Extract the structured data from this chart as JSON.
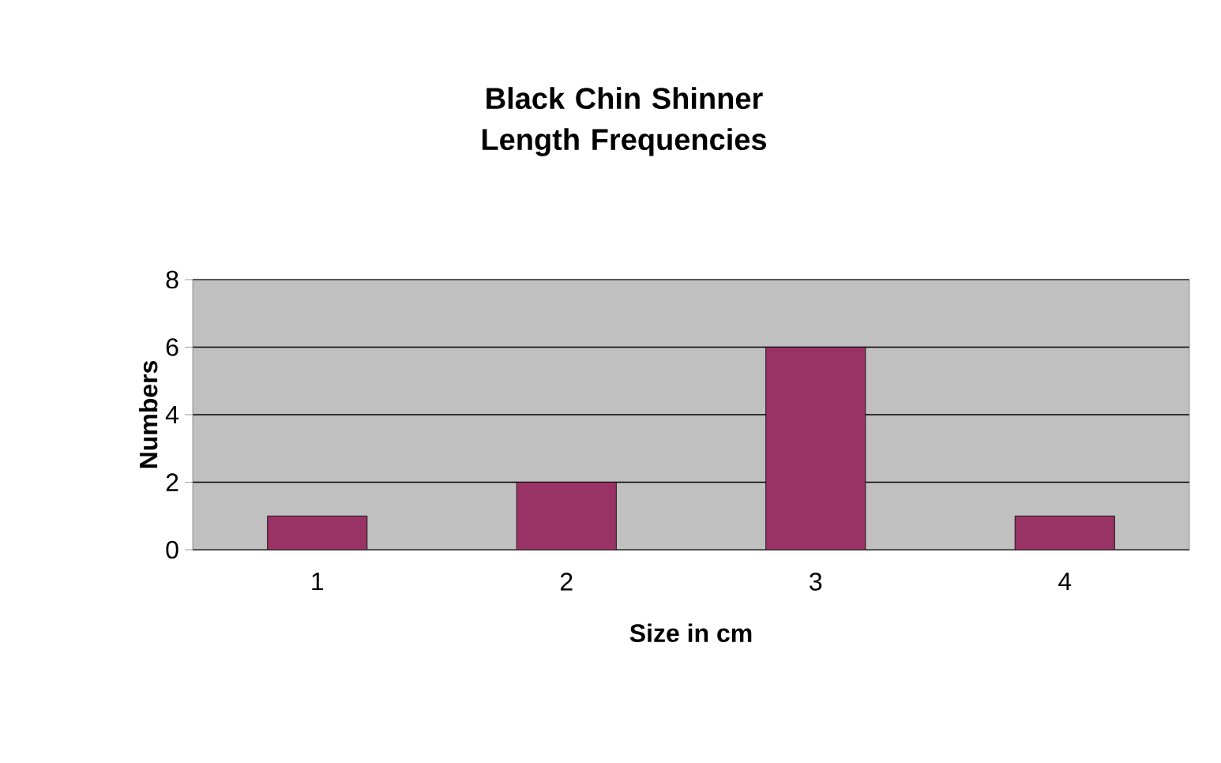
{
  "chart_data": {
    "type": "bar",
    "title": "Black Chin Shinner Length Frequencies",
    "xlabel": "Size in cm",
    "ylabel": "Numbers",
    "categories": [
      "1",
      "2",
      "3",
      "4"
    ],
    "values": [
      1,
      2,
      6,
      1
    ],
    "color": "#993366",
    "ylim": [
      0,
      8
    ],
    "yticks": [
      0,
      2,
      4,
      6,
      8
    ],
    "grid": "y"
  }
}
